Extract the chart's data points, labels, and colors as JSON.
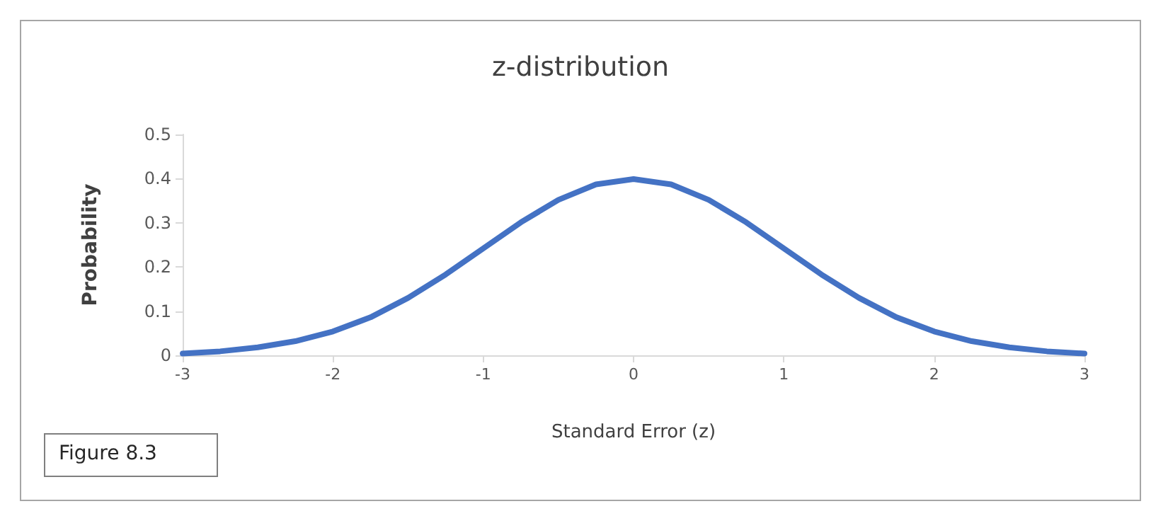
{
  "chart_data": {
    "type": "line",
    "title": "z-distribution",
    "xlabel": "Standard Error (z)",
    "ylabel": "Probability",
    "x": [
      -3,
      -2.75,
      -2.5,
      -2.25,
      -2,
      -1.75,
      -1.5,
      -1.25,
      -1,
      -0.75,
      -0.5,
      -0.25,
      0,
      0.25,
      0.5,
      0.75,
      1,
      1.25,
      1.5,
      1.75,
      2,
      2.25,
      2.5,
      2.75,
      3
    ],
    "series": [
      {
        "color": "#4472c4",
        "values": [
          0.004,
          0.009,
          0.018,
          0.032,
          0.054,
          0.086,
          0.13,
          0.183,
          0.242,
          0.301,
          0.352,
          0.387,
          0.399,
          0.387,
          0.352,
          0.301,
          0.242,
          0.183,
          0.13,
          0.086,
          0.054,
          0.032,
          0.018,
          0.009,
          0.004
        ]
      }
    ],
    "xlim": [
      -3,
      3
    ],
    "xticks": [
      -3,
      -2,
      -1,
      0,
      1,
      2,
      3
    ],
    "ylim": [
      0,
      0.5
    ],
    "yticks": [
      0,
      0.1,
      0.2,
      0.3,
      0.4,
      0.5
    ],
    "grid": false,
    "marker": "none",
    "line_style": "solid",
    "annotations": [
      "Figure 8.3"
    ]
  }
}
